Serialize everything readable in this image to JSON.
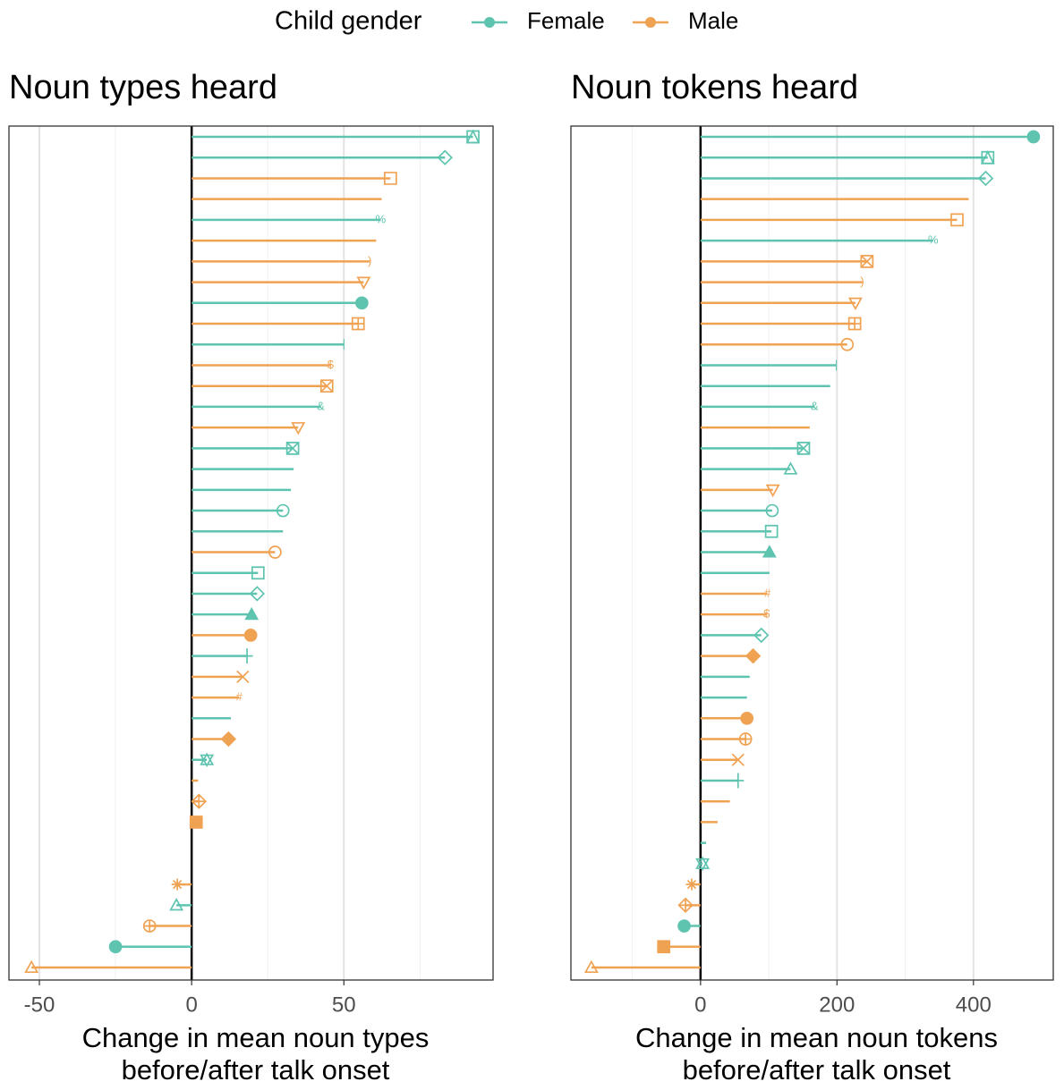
{
  "legend": {
    "title": "Child gender",
    "position": "top"
  },
  "chart_data": [
    {
      "type": "lollipop",
      "title": "Noun types heard",
      "xlabel": [
        "Change in mean noun types",
        "before/after talk onset"
      ],
      "xlim": [
        -60,
        99
      ],
      "xticks": [
        -50,
        0,
        50
      ],
      "x_minor_grid": [
        -25,
        25,
        75
      ],
      "grid": true,
      "series": [
        {
          "name": "Female",
          "color": "#5ec4b0",
          "values": [
            92.4,
            83.2,
            null,
            null,
            62.1,
            null,
            null,
            null,
            55.9,
            null,
            50.0,
            null,
            null,
            42.4,
            null,
            33.2,
            33.5,
            32.6,
            30.0,
            30.0,
            null,
            21.8,
            21.5,
            19.7,
            null,
            18.2,
            null,
            null,
            12.9,
            null,
            5.0,
            null,
            null,
            null,
            null,
            null,
            null,
            -5.0,
            null,
            -25.0,
            null
          ]
        },
        {
          "name": "Male",
          "color": "#f0a253",
          "values": [
            null,
            null,
            65.3,
            62.4,
            null,
            60.6,
            58.5,
            56.5,
            null,
            54.7,
            null,
            45.6,
            44.4,
            null,
            35.0,
            null,
            null,
            null,
            null,
            null,
            27.4,
            null,
            null,
            null,
            19.4,
            null,
            16.8,
            15.6,
            null,
            12.1,
            null,
            2.1,
            2.4,
            1.5,
            null,
            null,
            -4.7,
            null,
            -13.8,
            null,
            -52.6
          ]
        }
      ],
      "markers": [
        "square-triangle",
        "diamond",
        "square",
        null,
        "%",
        null,
        ")",
        "triangle-down",
        "circle-filled",
        "square-plus",
        "|",
        "$",
        "square-x",
        "&",
        "triangle-down",
        "square-x",
        null,
        null,
        "circle",
        null,
        "circle",
        "square",
        "diamond",
        "triangle-filled",
        "circle-filled",
        "plus",
        "x",
        "#",
        null,
        "diamond-filled",
        "star",
        null,
        "diamond-plus",
        "square-filled",
        null,
        null,
        "asterisk",
        "triangle",
        "circle-plus",
        "circle-filled",
        "triangle"
      ]
    },
    {
      "type": "lollipop",
      "title": "Noun tokens heard",
      "xlabel": [
        "Change in mean noun tokens",
        "before/after talk onset"
      ],
      "xlim": [
        -190,
        517
      ],
      "xticks": [
        0,
        200,
        400
      ],
      "x_minor_grid": [
        -100,
        100,
        300
      ],
      "grid": true,
      "series": [
        {
          "name": "Female",
          "color": "#5ec4b0",
          "values": [
            488,
            421,
            418,
            null,
            null,
            341,
            null,
            null,
            null,
            null,
            null,
            199,
            190,
            167,
            null,
            151,
            132,
            null,
            105,
            104,
            101,
            101,
            null,
            null,
            89,
            null,
            72,
            68,
            null,
            null,
            null,
            55,
            null,
            null,
            8,
            3,
            null,
            null,
            -24,
            null,
            null
          ]
        },
        {
          "name": "Male",
          "color": "#f0a253",
          "values": [
            null,
            null,
            null,
            393,
            376,
            null,
            244,
            237,
            227,
            226,
            215,
            null,
            null,
            null,
            160,
            null,
            null,
            106,
            null,
            null,
            null,
            null,
            98,
            97,
            null,
            77,
            null,
            null,
            68,
            66,
            55,
            null,
            43,
            25,
            null,
            null,
            -13,
            -22,
            null,
            -54,
            -160
          ]
        }
      ],
      "markers": [
        "circle-filled",
        "square-triangle",
        "diamond",
        null,
        "square",
        "%",
        "square-x",
        ")",
        "triangle-down",
        "square-plus",
        "circle",
        "|",
        null,
        "&",
        null,
        "square-x",
        "triangle",
        "triangle-down",
        "circle",
        "square",
        "triangle-filled",
        null,
        "#",
        "$",
        "diamond",
        "diamond-filled",
        null,
        null,
        "circle-filled",
        "circle-plus",
        "x",
        "plus",
        null,
        null,
        null,
        "star",
        "asterisk",
        "diamond-plus",
        "circle-filled",
        "square-filled",
        "triangle"
      ]
    }
  ]
}
